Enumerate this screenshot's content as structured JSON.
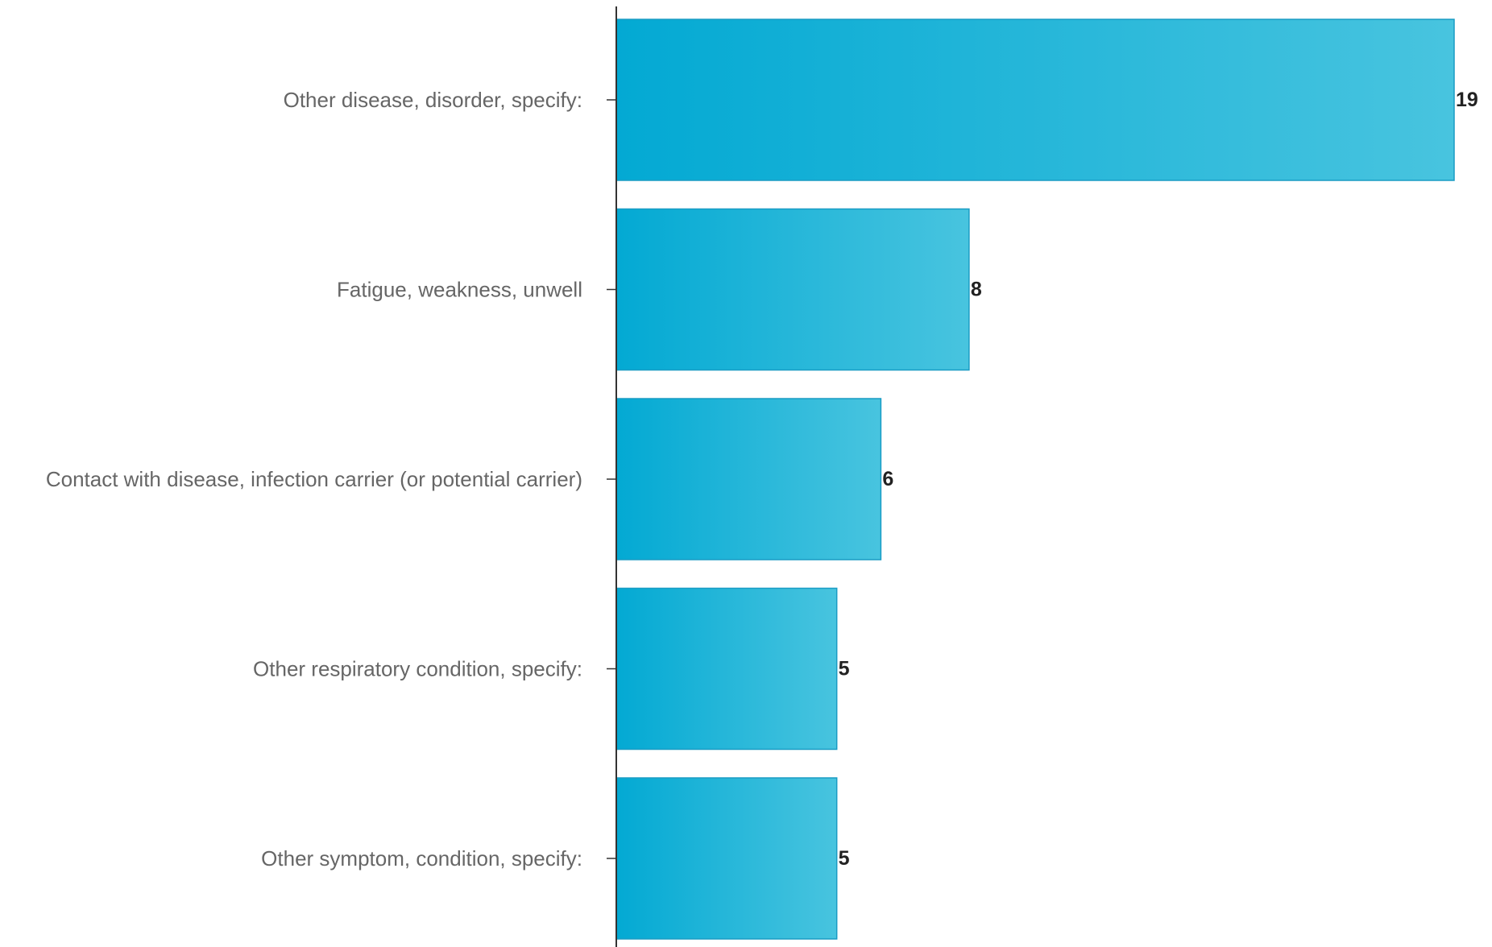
{
  "chart_data": {
    "type": "bar",
    "orientation": "horizontal",
    "categories": [
      "Other disease, disorder, specify:",
      "Fatigue, weakness, unwell",
      "Contact with disease, infection carrier (or potential carrier)",
      "Other respiratory condition, specify:",
      "Other symptom, condition, specify:"
    ],
    "values": [
      19,
      8,
      6,
      5,
      5
    ],
    "value_labels": [
      "19",
      "8",
      "6",
      "5",
      "5"
    ],
    "xlim": [
      0,
      19
    ],
    "grid": false,
    "legend": "none",
    "colors": {
      "bar_start": "#03a9d3",
      "bar_end": "#48c4df",
      "bar_stroke": "#1a9cc4",
      "axis": "#333333",
      "category_text": "#666666",
      "value_text": "#222222"
    }
  }
}
